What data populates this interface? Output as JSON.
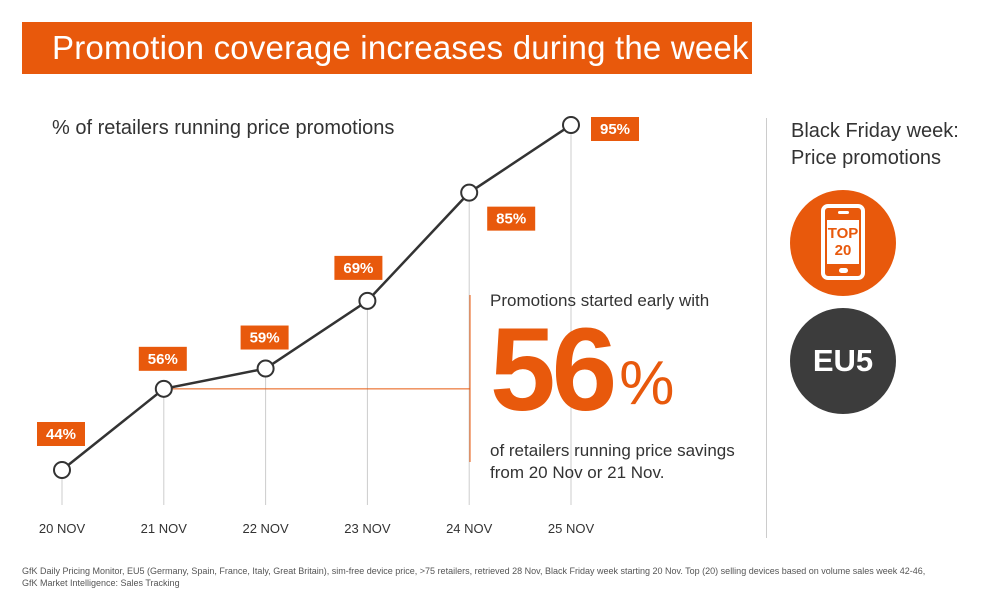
{
  "header": {
    "title": "Promotion coverage increases during the week"
  },
  "chart_data": {
    "type": "line",
    "subtitle": "% of retailers running price promotions",
    "categories": [
      "20 NOV",
      "21 NOV",
      "22 NOV",
      "23 NOV",
      "24 NOV",
      "25 NOV"
    ],
    "values": [
      44,
      56,
      59,
      69,
      85,
      95
    ],
    "data_labels": [
      "44%",
      "56%",
      "59%",
      "69%",
      "85%",
      "95%"
    ],
    "ylim": [
      40,
      100
    ],
    "grid": false,
    "xlabel": "",
    "ylabel": ""
  },
  "callout": {
    "intro": "Promotions started early with",
    "big_number": "56",
    "percent_sign": "%",
    "description": "of retailers running price savings from 20 Nov or 21 Nov."
  },
  "sidebar": {
    "title_line1": "Black Friday week:",
    "title_line2": "Price promotions",
    "top_badge_line1": "TOP",
    "top_badge_line2": "20",
    "region_badge": "EU5"
  },
  "footnote": {
    "line1": "GfK Daily Pricing Monitor, EU5 (Germany, Spain, France, Italy, Great Britain), sim-free device price, >75 retailers, retrieved 28 Nov, Black Friday week starting 20 Nov. Top (20) selling devices based on volume sales week 42-46,",
    "line2": "GfK Market Intelligence: Sales Tracking"
  },
  "colors": {
    "accent": "#e8590c",
    "dark": "#3c3c3c",
    "line": "#333333",
    "guide": "#cccccc"
  }
}
